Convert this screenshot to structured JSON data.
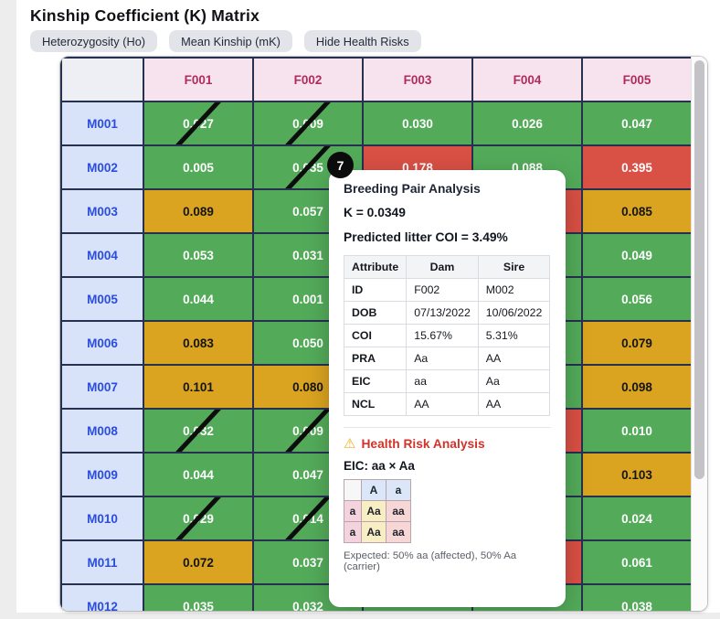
{
  "page": {
    "title": "Kinship Coefficient (K) Matrix"
  },
  "toolbar": {
    "buttons": [
      {
        "label": "Heterozygosity (Ho)"
      },
      {
        "label": "Mean Kinship (mK)"
      },
      {
        "label": "Hide Health Risks"
      }
    ]
  },
  "colors": {
    "green": "#53ab5a",
    "yellow": "#daa421",
    "red": "#d95044",
    "rowHeaderBg": "#d8e2f8",
    "rowHeaderText": "#2b4ddd",
    "colHeaderBg": "#f6e3ee",
    "colHeaderText": "#b02d58",
    "gridBorder": "#26314f",
    "healthRed": "#d0342a",
    "warnYellow": "#eeb020",
    "punnettHeaderBg": "#dbe7f8",
    "punnettLabelBg": "#f5d3de",
    "punnettCarrierBg": "#f7eec3",
    "punnettAffectedBg": "#f7d6d6"
  },
  "matrix": {
    "columns": [
      "F001",
      "F002",
      "F003",
      "F004",
      "F005"
    ],
    "rows": [
      {
        "id": "M001",
        "cells": [
          {
            "value": "0.027",
            "level": "green",
            "slashed": true
          },
          {
            "value": "0.009",
            "level": "green",
            "slashed": true
          },
          {
            "value": "0.030",
            "level": "green"
          },
          {
            "value": "0.026",
            "level": "green"
          },
          {
            "value": "0.047",
            "level": "green"
          }
        ]
      },
      {
        "id": "M002",
        "cells": [
          {
            "value": "0.005",
            "level": "green"
          },
          {
            "value": "0.035",
            "level": "green",
            "slashed": true
          },
          {
            "value": "0.178",
            "level": "red"
          },
          {
            "value": "0.088",
            "level": "green"
          },
          {
            "value": "0.395",
            "level": "red"
          }
        ]
      },
      {
        "id": "M003",
        "cells": [
          {
            "value": "0.089",
            "level": "yellow"
          },
          {
            "value": "0.057",
            "level": "green"
          },
          {
            "value": "",
            "level": "green"
          },
          {
            "value": "",
            "level": "red"
          },
          {
            "value": "0.085",
            "level": "yellow"
          }
        ]
      },
      {
        "id": "M004",
        "cells": [
          {
            "value": "0.053",
            "level": "green"
          },
          {
            "value": "0.031",
            "level": "green"
          },
          {
            "value": "",
            "level": "green"
          },
          {
            "value": "",
            "level": "green"
          },
          {
            "value": "0.049",
            "level": "green"
          }
        ]
      },
      {
        "id": "M005",
        "cells": [
          {
            "value": "0.044",
            "level": "green"
          },
          {
            "value": "0.001",
            "level": "green"
          },
          {
            "value": "",
            "level": "green"
          },
          {
            "value": "",
            "level": "green"
          },
          {
            "value": "0.056",
            "level": "green"
          }
        ]
      },
      {
        "id": "M006",
        "cells": [
          {
            "value": "0.083",
            "level": "yellow"
          },
          {
            "value": "0.050",
            "level": "green"
          },
          {
            "value": "",
            "level": "green"
          },
          {
            "value": "",
            "level": "green"
          },
          {
            "value": "0.079",
            "level": "yellow"
          }
        ]
      },
      {
        "id": "M007",
        "cells": [
          {
            "value": "0.101",
            "level": "yellow"
          },
          {
            "value": "0.080",
            "level": "yellow"
          },
          {
            "value": "",
            "level": "green"
          },
          {
            "value": "",
            "level": "green"
          },
          {
            "value": "0.098",
            "level": "yellow"
          }
        ]
      },
      {
        "id": "M008",
        "cells": [
          {
            "value": "0.032",
            "level": "green",
            "slashed": true
          },
          {
            "value": "0.009",
            "level": "green",
            "slashed": true
          },
          {
            "value": "",
            "level": "green"
          },
          {
            "value": "",
            "level": "red"
          },
          {
            "value": "0.010",
            "level": "green"
          }
        ]
      },
      {
        "id": "M009",
        "cells": [
          {
            "value": "0.044",
            "level": "green"
          },
          {
            "value": "0.047",
            "level": "green"
          },
          {
            "value": "",
            "level": "green"
          },
          {
            "value": "",
            "level": "green"
          },
          {
            "value": "0.103",
            "level": "yellow"
          }
        ]
      },
      {
        "id": "M010",
        "cells": [
          {
            "value": "0.029",
            "level": "green",
            "slashed": true
          },
          {
            "value": "0.014",
            "level": "green",
            "slashed": true
          },
          {
            "value": "",
            "level": "green"
          },
          {
            "value": "",
            "level": "green"
          },
          {
            "value": "0.024",
            "level": "green"
          }
        ]
      },
      {
        "id": "M011",
        "cells": [
          {
            "value": "0.072",
            "level": "yellow"
          },
          {
            "value": "0.037",
            "level": "green"
          },
          {
            "value": "",
            "level": "green"
          },
          {
            "value": "",
            "level": "red"
          },
          {
            "value": "0.061",
            "level": "green"
          }
        ]
      },
      {
        "id": "M012",
        "cells": [
          {
            "value": "0.035",
            "level": "green"
          },
          {
            "value": "0.032",
            "level": "green"
          },
          {
            "value": "",
            "level": "green"
          },
          {
            "value": "",
            "level": "green"
          },
          {
            "value": "0.038",
            "level": "green"
          }
        ]
      }
    ]
  },
  "popover": {
    "step_badge": "7",
    "title": "Breeding Pair Analysis",
    "k_line": "K = 0.0349",
    "coi_line": "Predicted litter COI = 3.49%",
    "pair_table": {
      "headers": [
        "Attribute",
        "Dam",
        "Sire"
      ],
      "rows": [
        [
          "ID",
          "F002",
          "M002"
        ],
        [
          "DOB",
          "07/13/2022",
          "10/06/2022"
        ],
        [
          "COI",
          "15.67%",
          "5.31%"
        ],
        [
          "PRA",
          "Aa",
          "AA"
        ],
        [
          "EIC",
          "aa",
          "Aa"
        ],
        [
          "NCL",
          "AA",
          "AA"
        ]
      ]
    },
    "health": {
      "warning_icon": "⚠",
      "title": "Health Risk Analysis",
      "cross_label": "EIC: aa × Aa",
      "punnett": {
        "col_headers": [
          "A",
          "a"
        ],
        "rows": [
          {
            "label": "a",
            "cells": [
              {
                "text": "Aa",
                "type": "carrier"
              },
              {
                "text": "aa",
                "type": "affected"
              }
            ]
          },
          {
            "label": "a",
            "cells": [
              {
                "text": "Aa",
                "type": "carrier"
              },
              {
                "text": "aa",
                "type": "affected"
              }
            ]
          }
        ]
      },
      "expected": "Expected: 50% aa (affected), 50% Aa (carrier)"
    }
  }
}
